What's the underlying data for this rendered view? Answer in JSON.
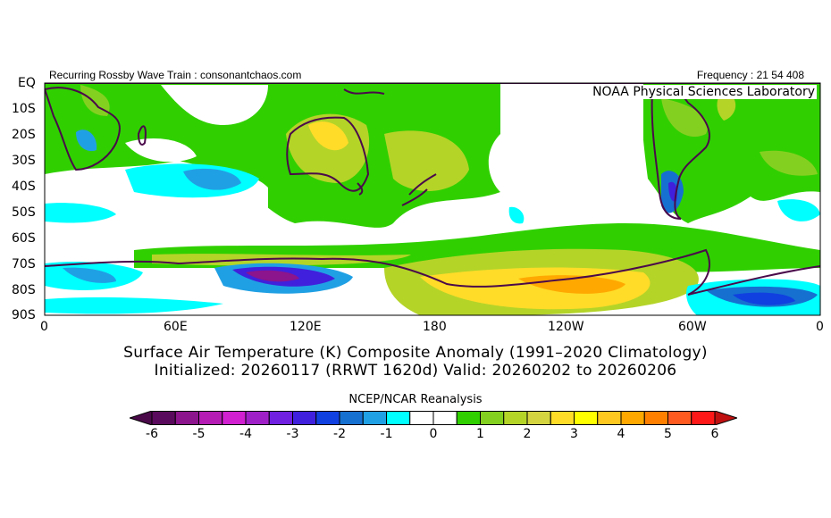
{
  "header": {
    "left": "Recurring Rossby Wave Train : consonantchaos.com",
    "right": "Frequency : 21 54 408",
    "lab": "NOAA Physical Sciences Laboratory"
  },
  "lat_labels": [
    "EQ",
    "10S",
    "20S",
    "30S",
    "40S",
    "50S",
    "60S",
    "70S",
    "80S",
    "90S"
  ],
  "lon_labels": [
    "0",
    "60E",
    "120E",
    "180",
    "120W",
    "60W",
    "0"
  ],
  "title": {
    "line1": "Surface Air Temperature (K) Composite Anomaly (1991–2020 Climatology)",
    "line2": "Initialized: 20260117 (RRWT 1620d) Valid: 20260202 to 20260206"
  },
  "colorbar": {
    "title": "NCEP/NCAR Reanalysis",
    "range": [
      -6,
      6
    ],
    "step": 0.5,
    "ticks": [
      "-6",
      "-5",
      "-4",
      "-3",
      "-2",
      "-1",
      "0",
      "1",
      "2",
      "3",
      "4",
      "5",
      "6"
    ],
    "colors": [
      "#5a0a5c",
      "#8c148c",
      "#b41cb4",
      "#d020d0",
      "#a020c8",
      "#7020e0",
      "#4020dc",
      "#1040e0",
      "#1670d0",
      "#20a0e4",
      "#00ffff",
      "#ffffff",
      "#ffffff",
      "#30d000",
      "#84d020",
      "#b4d428",
      "#d4d440",
      "#ffdc28",
      "#ffff00",
      "#ffc820",
      "#ffa800",
      "#ff8000",
      "#ff5a20",
      "#ff1818"
    ],
    "under_color": "#4a0a4a",
    "over_color": "#c01010"
  }
}
